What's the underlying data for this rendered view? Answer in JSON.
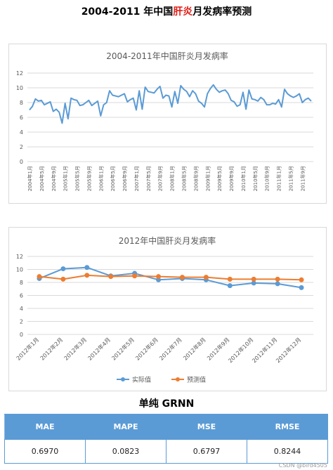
{
  "page": {
    "title_part1": "2004-2011 年中国",
    "title_highlight": "肝炎",
    "title_part2": "月发病率预测",
    "section_title": "单纯 GRNN",
    "watermark": "CSDN @bird4505"
  },
  "chart_data": [
    {
      "type": "line",
      "title": "2004-2011年中国肝炎月发病率",
      "ylim": [
        0,
        12
      ],
      "yticks": [
        0,
        2,
        4,
        6,
        8,
        10,
        12
      ],
      "grid": true,
      "xtick_labels": [
        "2004年1月",
        "2004年5月",
        "2004年9月",
        "2005年1月",
        "2005年5月",
        "2005年9月",
        "2006年1月",
        "2006年5月",
        "2006年9月",
        "2007年1月",
        "2007年5月",
        "2007年9月",
        "2008年1月",
        "2008年5月",
        "2008年9月",
        "2009年1月",
        "2009年5月",
        "2009年9月",
        "2010年1月",
        "2010年5月",
        "2010年9月",
        "2011年1月",
        "2011年5月",
        "2011年9月"
      ],
      "series": [
        {
          "name": "",
          "color": "#5b9bd5",
          "values": [
            7.0,
            7.5,
            8.5,
            8.2,
            8.3,
            7.7,
            7.9,
            8.1,
            6.8,
            7.1,
            6.7,
            5.2,
            7.9,
            5.8,
            8.6,
            8.4,
            8.3,
            7.6,
            7.7,
            8.0,
            8.3,
            7.6,
            7.9,
            8.2,
            6.2,
            7.7,
            8.0,
            9.6,
            9.0,
            8.9,
            8.8,
            9.0,
            9.2,
            8.1,
            8.4,
            8.6,
            7.0,
            9.6,
            7.1,
            10.1,
            9.5,
            9.4,
            9.3,
            9.8,
            10.2,
            8.6,
            9.0,
            8.9,
            7.4,
            9.5,
            7.9,
            10.3,
            9.8,
            9.5,
            8.8,
            9.6,
            9.2,
            8.2,
            7.9,
            7.4,
            9.2,
            9.9,
            10.4,
            9.8,
            9.4,
            9.6,
            9.7,
            9.2,
            8.3,
            8.1,
            7.5,
            7.7,
            9.4,
            7.1,
            9.7,
            8.5,
            8.4,
            8.2,
            8.7,
            8.4,
            7.7,
            7.7,
            7.9,
            7.8,
            8.4,
            7.4,
            9.8,
            9.2,
            8.9,
            8.7,
            8.9,
            9.2,
            8.0,
            8.4,
            8.6,
            8.2
          ]
        }
      ]
    },
    {
      "type": "line",
      "title": "2012年中国肝炎月发病率",
      "ylim": [
        0,
        12
      ],
      "yticks": [
        0,
        2,
        4,
        6,
        8,
        10,
        12
      ],
      "grid": true,
      "legend": "bottom",
      "categories": [
        "2012年1月",
        "2012年2月",
        "2012年3月",
        "2012年4月",
        "2012年5月",
        "2012年6月",
        "2012年7月",
        "2012年8月",
        "2012年9月",
        "2012年10月",
        "2012年11月",
        "2012年12月"
      ],
      "series": [
        {
          "name": "实际值",
          "color": "#5b9bd5",
          "values": [
            8.6,
            10.1,
            10.3,
            9.0,
            9.4,
            8.4,
            8.6,
            8.4,
            7.5,
            7.9,
            7.8,
            7.2
          ]
        },
        {
          "name": "预测值",
          "color": "#ed7d31",
          "values": [
            8.9,
            8.5,
            9.1,
            8.9,
            9.0,
            8.9,
            8.8,
            8.8,
            8.5,
            8.5,
            8.5,
            8.4
          ]
        }
      ]
    }
  ],
  "table": {
    "headers": [
      "MAE",
      "MAPE",
      "MSE",
      "RMSE"
    ],
    "values": [
      "0.6970",
      "0.0823",
      "0.6797",
      "0.8244"
    ]
  }
}
